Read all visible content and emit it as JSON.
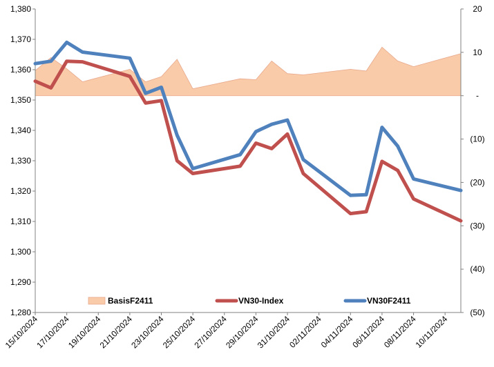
{
  "chart_data": {
    "type": "line",
    "title": "",
    "xlabel": "",
    "ylabel": "",
    "x_tick_labels": [
      "15/10/2024",
      "17/10/2024",
      "19/10/2024",
      "21/10/2024",
      "23/10/2024",
      "25/10/2024",
      "27/10/2024",
      "29/10/2024",
      "31/10/2024",
      "02/11/2024",
      "04/11/2024",
      "06/11/2024",
      "08/11/2024",
      "10/11/2024"
    ],
    "x_range": [
      "2024-10-15",
      "2024-11-11"
    ],
    "y_left": {
      "min": 1280,
      "max": 1380,
      "step": 10,
      "tick_labels": [
        "1,280",
        "1,290",
        "1,300",
        "1,310",
        "1,320",
        "1,330",
        "1,340",
        "1,350",
        "1,360",
        "1,370",
        "1,380"
      ]
    },
    "y_right": {
      "min": -50,
      "max": 20,
      "step": 10,
      "tick_labels": [
        "(50)",
        "(40)",
        "(30)",
        "(20)",
        "(10)",
        "-",
        "10",
        "20"
      ]
    },
    "grid": false,
    "legend_position": "bottom",
    "series": [
      {
        "name": "BasisF2411",
        "kind": "area",
        "axis": "right",
        "color": "#f9cba8",
        "edge_color": "#e8a88c",
        "points": [
          [
            "2024-10-15",
            5.8
          ],
          [
            "2024-10-16",
            8.8
          ],
          [
            "2024-10-17",
            6.2
          ],
          [
            "2024-10-18",
            3.2
          ],
          [
            "2024-10-21",
            6.1
          ],
          [
            "2024-10-22",
            3.2
          ],
          [
            "2024-10-23",
            4.4
          ],
          [
            "2024-10-24",
            8.4
          ],
          [
            "2024-10-25",
            1.6
          ],
          [
            "2024-10-28",
            3.9
          ],
          [
            "2024-10-29",
            3.7
          ],
          [
            "2024-10-30",
            8.0
          ],
          [
            "2024-10-31",
            5.1
          ],
          [
            "2024-11-01",
            4.8
          ],
          [
            "2024-11-04",
            6.1
          ],
          [
            "2024-11-05",
            5.7
          ],
          [
            "2024-11-06",
            11.2
          ],
          [
            "2024-11-07",
            8.0
          ],
          [
            "2024-11-08",
            6.7
          ],
          [
            "2024-11-11",
            9.7
          ]
        ]
      },
      {
        "name": "VN30-Index",
        "kind": "line",
        "axis": "left",
        "color": "#c0504d",
        "points": [
          [
            "2024-10-15",
            1356.2
          ],
          [
            "2024-10-16",
            1354.0
          ],
          [
            "2024-10-17",
            1362.8
          ],
          [
            "2024-10-18",
            1362.6
          ],
          [
            "2024-10-21",
            1357.8
          ],
          [
            "2024-10-22",
            1349.0
          ],
          [
            "2024-10-23",
            1349.8
          ],
          [
            "2024-10-24",
            1330.0
          ],
          [
            "2024-10-25",
            1325.8
          ],
          [
            "2024-10-28",
            1328.2
          ],
          [
            "2024-10-29",
            1335.8
          ],
          [
            "2024-10-30",
            1334.0
          ],
          [
            "2024-10-31",
            1338.8
          ],
          [
            "2024-11-01",
            1325.8
          ],
          [
            "2024-11-04",
            1312.6
          ],
          [
            "2024-11-05",
            1313.2
          ],
          [
            "2024-11-06",
            1329.8
          ],
          [
            "2024-11-07",
            1326.8
          ],
          [
            "2024-11-08",
            1317.4
          ],
          [
            "2024-11-11",
            1310.2
          ]
        ]
      },
      {
        "name": "VN30F2411",
        "kind": "line",
        "axis": "left",
        "color": "#4f81bd",
        "points": [
          [
            "2024-10-15",
            1362.0
          ],
          [
            "2024-10-16",
            1362.8
          ],
          [
            "2024-10-17",
            1369.0
          ],
          [
            "2024-10-18",
            1365.8
          ],
          [
            "2024-10-21",
            1363.8
          ],
          [
            "2024-10-22",
            1352.2
          ],
          [
            "2024-10-23",
            1354.2
          ],
          [
            "2024-10-24",
            1338.4
          ],
          [
            "2024-10-25",
            1327.4
          ],
          [
            "2024-10-28",
            1332.0
          ],
          [
            "2024-10-29",
            1339.6
          ],
          [
            "2024-10-30",
            1342.0
          ],
          [
            "2024-10-31",
            1343.4
          ],
          [
            "2024-11-01",
            1330.4
          ],
          [
            "2024-11-04",
            1318.6
          ],
          [
            "2024-11-05",
            1318.8
          ],
          [
            "2024-11-06",
            1341.0
          ],
          [
            "2024-11-07",
            1334.8
          ],
          [
            "2024-11-08",
            1324.0
          ],
          [
            "2024-11-11",
            1320.2
          ]
        ]
      }
    ]
  }
}
